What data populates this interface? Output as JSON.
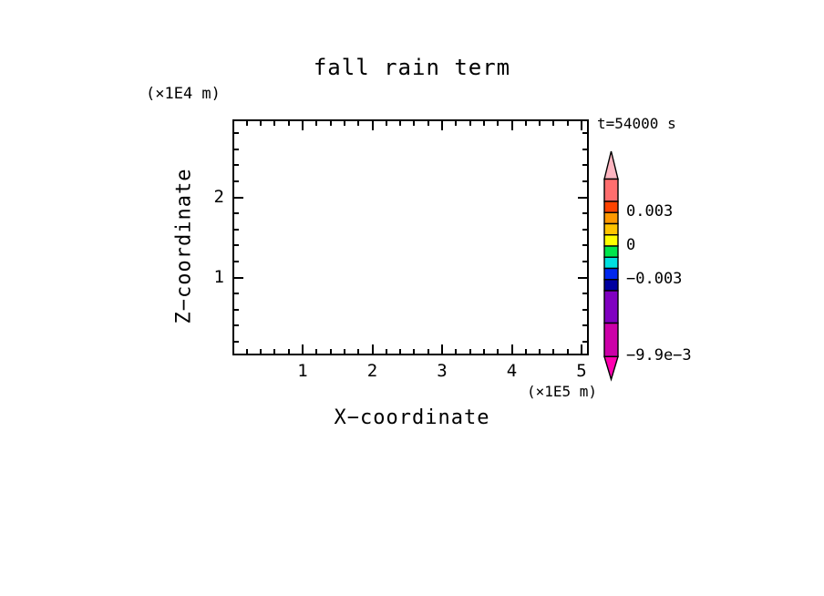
{
  "title": "fall rain term",
  "time_annotation": "t=54000 s",
  "axes": {
    "x": {
      "label": "X−coordinate",
      "unit_label": "(×1E5 m)",
      "major_ticks": [
        1,
        2,
        3,
        4,
        5
      ],
      "minor_tick_step": 0.2,
      "range": [
        0,
        5.1
      ]
    },
    "z": {
      "label": "Z−coordinate",
      "unit_label": "(×1E4 m)",
      "major_ticks": [
        1,
        2
      ],
      "minor_tick_step": 0.2,
      "range": [
        0.03,
        2.97
      ]
    }
  },
  "colorbar": {
    "labels": [
      {
        "text": "0.003",
        "value": 0.003
      },
      {
        "text": "0",
        "value": 0
      },
      {
        "text": "−0.003",
        "value": -0.003
      },
      {
        "text": "−9.9e−3",
        "value": -0.0099
      }
    ],
    "segments": [
      {
        "from": 0.004,
        "to": 0.006,
        "color": "#FF6E6E"
      },
      {
        "from": 0.003,
        "to": 0.004,
        "color": "#FF4300"
      },
      {
        "from": 0.002,
        "to": 0.003,
        "color": "#FF9800"
      },
      {
        "from": 0.001,
        "to": 0.002,
        "color": "#FFC400"
      },
      {
        "from": 0.0,
        "to": 0.001,
        "color": "#FFFF00"
      },
      {
        "from": -0.001,
        "to": 0.0,
        "color": "#00E64C"
      },
      {
        "from": -0.002,
        "to": -0.001,
        "color": "#00E0E0"
      },
      {
        "from": -0.003,
        "to": -0.002,
        "color": "#0028EE"
      },
      {
        "from": -0.004,
        "to": -0.003,
        "color": "#0000A0"
      },
      {
        "from": -0.0069,
        "to": -0.004,
        "color": "#8000C0"
      },
      {
        "from": -0.0099,
        "to": -0.0069,
        "color": "#CC00A8"
      }
    ],
    "arrow_top": {
      "meaning": "> 0.006",
      "color": "#FFB6C1"
    },
    "arrow_bottom": {
      "meaning": "< −9.9e−3",
      "color": "#FF00B0"
    },
    "outline_color": "#000000"
  },
  "chart_data": {
    "type": "heatmap",
    "subtype": "filled-contour-cross-section",
    "title": "fall rain term",
    "xlabel": "X−coordinate",
    "ylabel": "Z−coordinate",
    "x_unit": "(×1E5 m)",
    "z_unit": "(×1E4 m)",
    "xlim": [
      0,
      5.1
    ],
    "zlim": [
      0.03,
      2.97
    ],
    "x_major_ticks": [
      1,
      2,
      3,
      4,
      5
    ],
    "z_major_ticks": [
      1,
      2
    ],
    "minor_tick_step": 0.2,
    "grid": false,
    "legend_position": "right-colorbar",
    "time_annotation": "t=54000 s",
    "colorbar_tick_values": [
      0.003,
      0,
      -0.003,
      -0.0099
    ],
    "field": "no shaded contours visible — field is blank (≈ 0) over the whole domain",
    "series": []
  }
}
